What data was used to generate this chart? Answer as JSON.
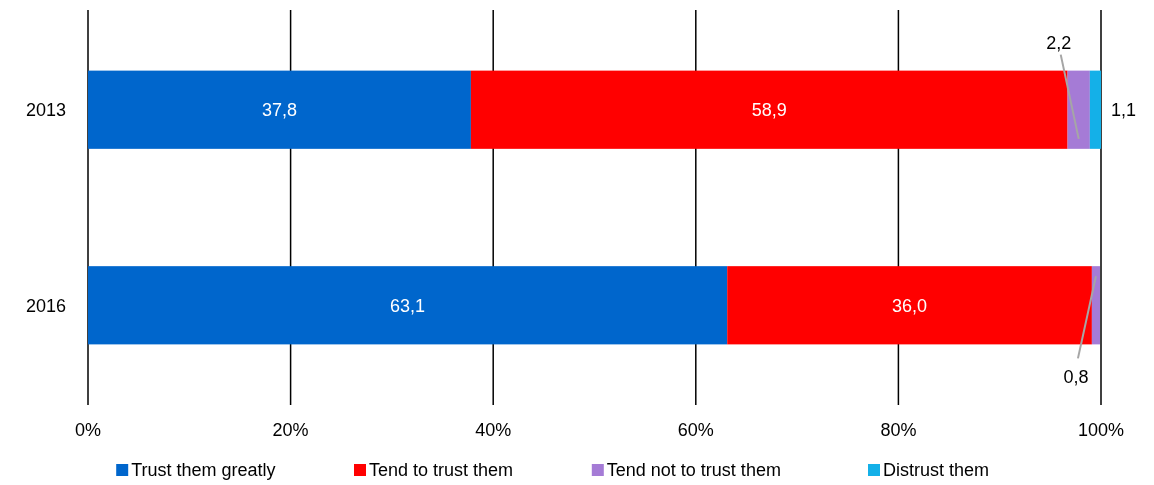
{
  "chart_data": {
    "type": "bar",
    "orientation": "horizontal",
    "stacked": true,
    "categories": [
      "2013",
      "2016"
    ],
    "series": [
      {
        "name": "Trust them greatly",
        "color": "#0066cc",
        "values": [
          37.8,
          63.1
        ],
        "value_labels": [
          "37,8",
          "63,1"
        ]
      },
      {
        "name": "Tend to trust them",
        "color": "#ff0000",
        "values": [
          58.9,
          36.0
        ],
        "value_labels": [
          "58,9",
          "36,0"
        ]
      },
      {
        "name": "Tend not to trust them",
        "color": "#a57bd6",
        "values": [
          2.2,
          0.8
        ],
        "value_labels": [
          "2,2",
          "0,8"
        ]
      },
      {
        "name": "Distrust them",
        "color": "#14b0e8",
        "values": [
          1.1,
          null
        ],
        "value_labels": [
          "1,1",
          null
        ]
      }
    ],
    "xlim": [
      0,
      100
    ],
    "xticks": [
      {
        "value": 0,
        "label": "0%"
      },
      {
        "value": 20,
        "label": "20%"
      },
      {
        "value": 40,
        "label": "40%"
      },
      {
        "value": 60,
        "label": "60%"
      },
      {
        "value": 80,
        "label": "80%"
      },
      {
        "value": 100,
        "label": "100%"
      }
    ],
    "grid": "x",
    "legend": "bottom"
  }
}
